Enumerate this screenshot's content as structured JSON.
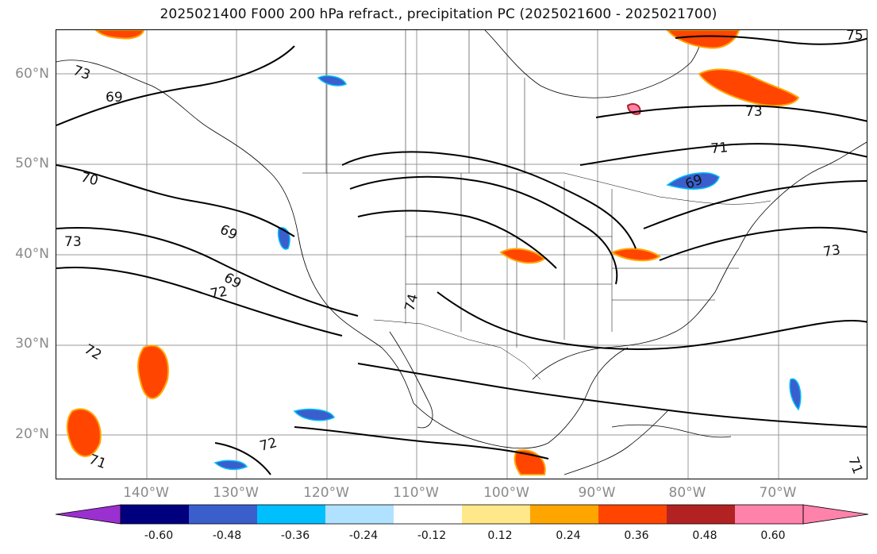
{
  "title": "2025021400 F000 200 hPa refract., precipitation PC (2025021600 - 2025021700)",
  "lat_labels": [
    "60°N",
    "50°N",
    "40°N",
    "30°N",
    "20°N"
  ],
  "lon_labels": [
    "140°W",
    "130°W",
    "120°W",
    "110°W",
    "100°W",
    "90°W",
    "80°W",
    "70°W"
  ],
  "contour_labels": [
    "69",
    "69",
    "70",
    "71",
    "72",
    "72",
    "73",
    "73",
    "73",
    "74",
    "69",
    "69",
    "71",
    "71",
    "72",
    "73",
    "75"
  ],
  "colorbar": {
    "tick_labels": [
      "-0.60",
      "-0.48",
      "-0.36",
      "-0.24",
      "-0.12",
      "0.12",
      "0.24",
      "0.36",
      "0.48",
      "0.60"
    ],
    "colors": [
      "#9b30d0",
      "#00007f",
      "#3a5fcd",
      "#00bfff",
      "#b0e2ff",
      "#ffffff",
      "#ffe88a",
      "#ffa500",
      "#ff4500",
      "#b22222",
      "#ff82ab"
    ]
  }
}
